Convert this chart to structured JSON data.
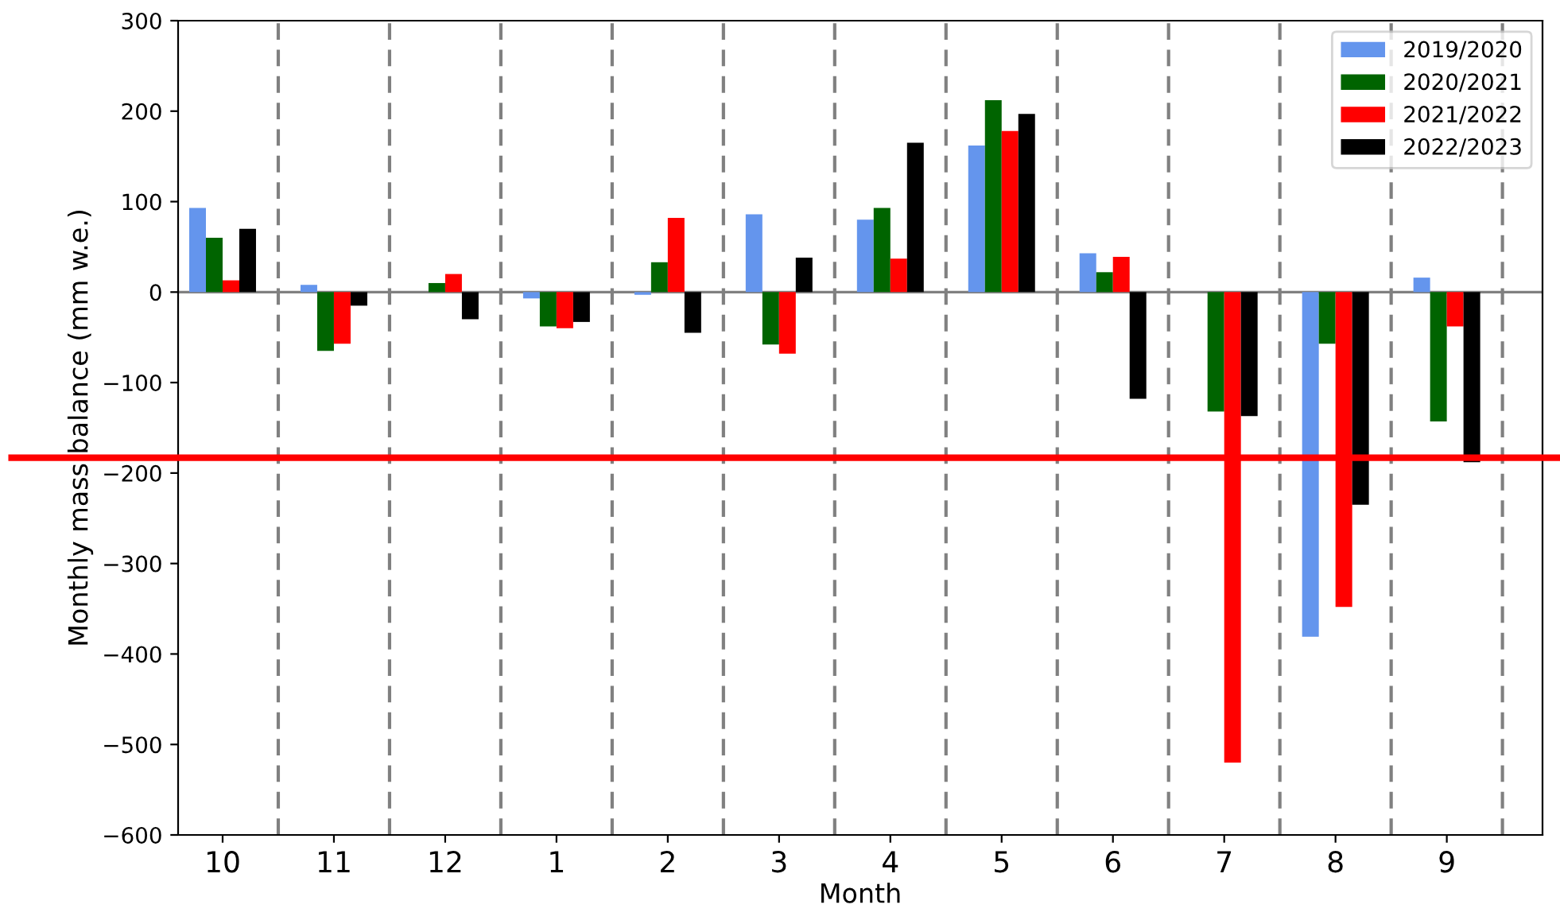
{
  "chart_data": {
    "type": "bar",
    "xlabel": "Month",
    "ylabel": "Monthly mass balance (mm w.e.)",
    "categories": [
      "10",
      "11",
      "12",
      "1",
      "2",
      "3",
      "4",
      "5",
      "6",
      "7",
      "8",
      "9"
    ],
    "series": [
      {
        "name": "2019/2020",
        "color": "#6495ed",
        "values": [
          93,
          8,
          null,
          -7,
          -3,
          86,
          80,
          162,
          43,
          null,
          -381,
          16
        ]
      },
      {
        "name": "2020/2021",
        "color": "#006400",
        "values": [
          60,
          -65,
          10,
          -38,
          33,
          -58,
          93,
          212,
          22,
          -132,
          -57,
          -143
        ]
      },
      {
        "name": "2021/2022",
        "color": "#ff0000",
        "values": [
          13,
          -57,
          20,
          -40,
          82,
          -68,
          37,
          178,
          39,
          -520,
          -348,
          -38
        ]
      },
      {
        "name": "2022/2023",
        "color": "#000000",
        "values": [
          70,
          -15,
          -30,
          -33,
          -45,
          38,
          165,
          197,
          -118,
          -137,
          -235,
          -188
        ]
      }
    ],
    "ylim": [
      -600,
      300
    ],
    "yticks": [
      -600,
      -500,
      -400,
      -300,
      -200,
      -100,
      0,
      100,
      200,
      300
    ],
    "ref_lines": [
      {
        "axis": "y",
        "value": 0,
        "color": "#808080",
        "line_style": "solid"
      },
      {
        "axis": "y",
        "value": -183,
        "color": "#ff0000",
        "line_style": "solid"
      }
    ],
    "grid": false,
    "legend": "top right"
  }
}
